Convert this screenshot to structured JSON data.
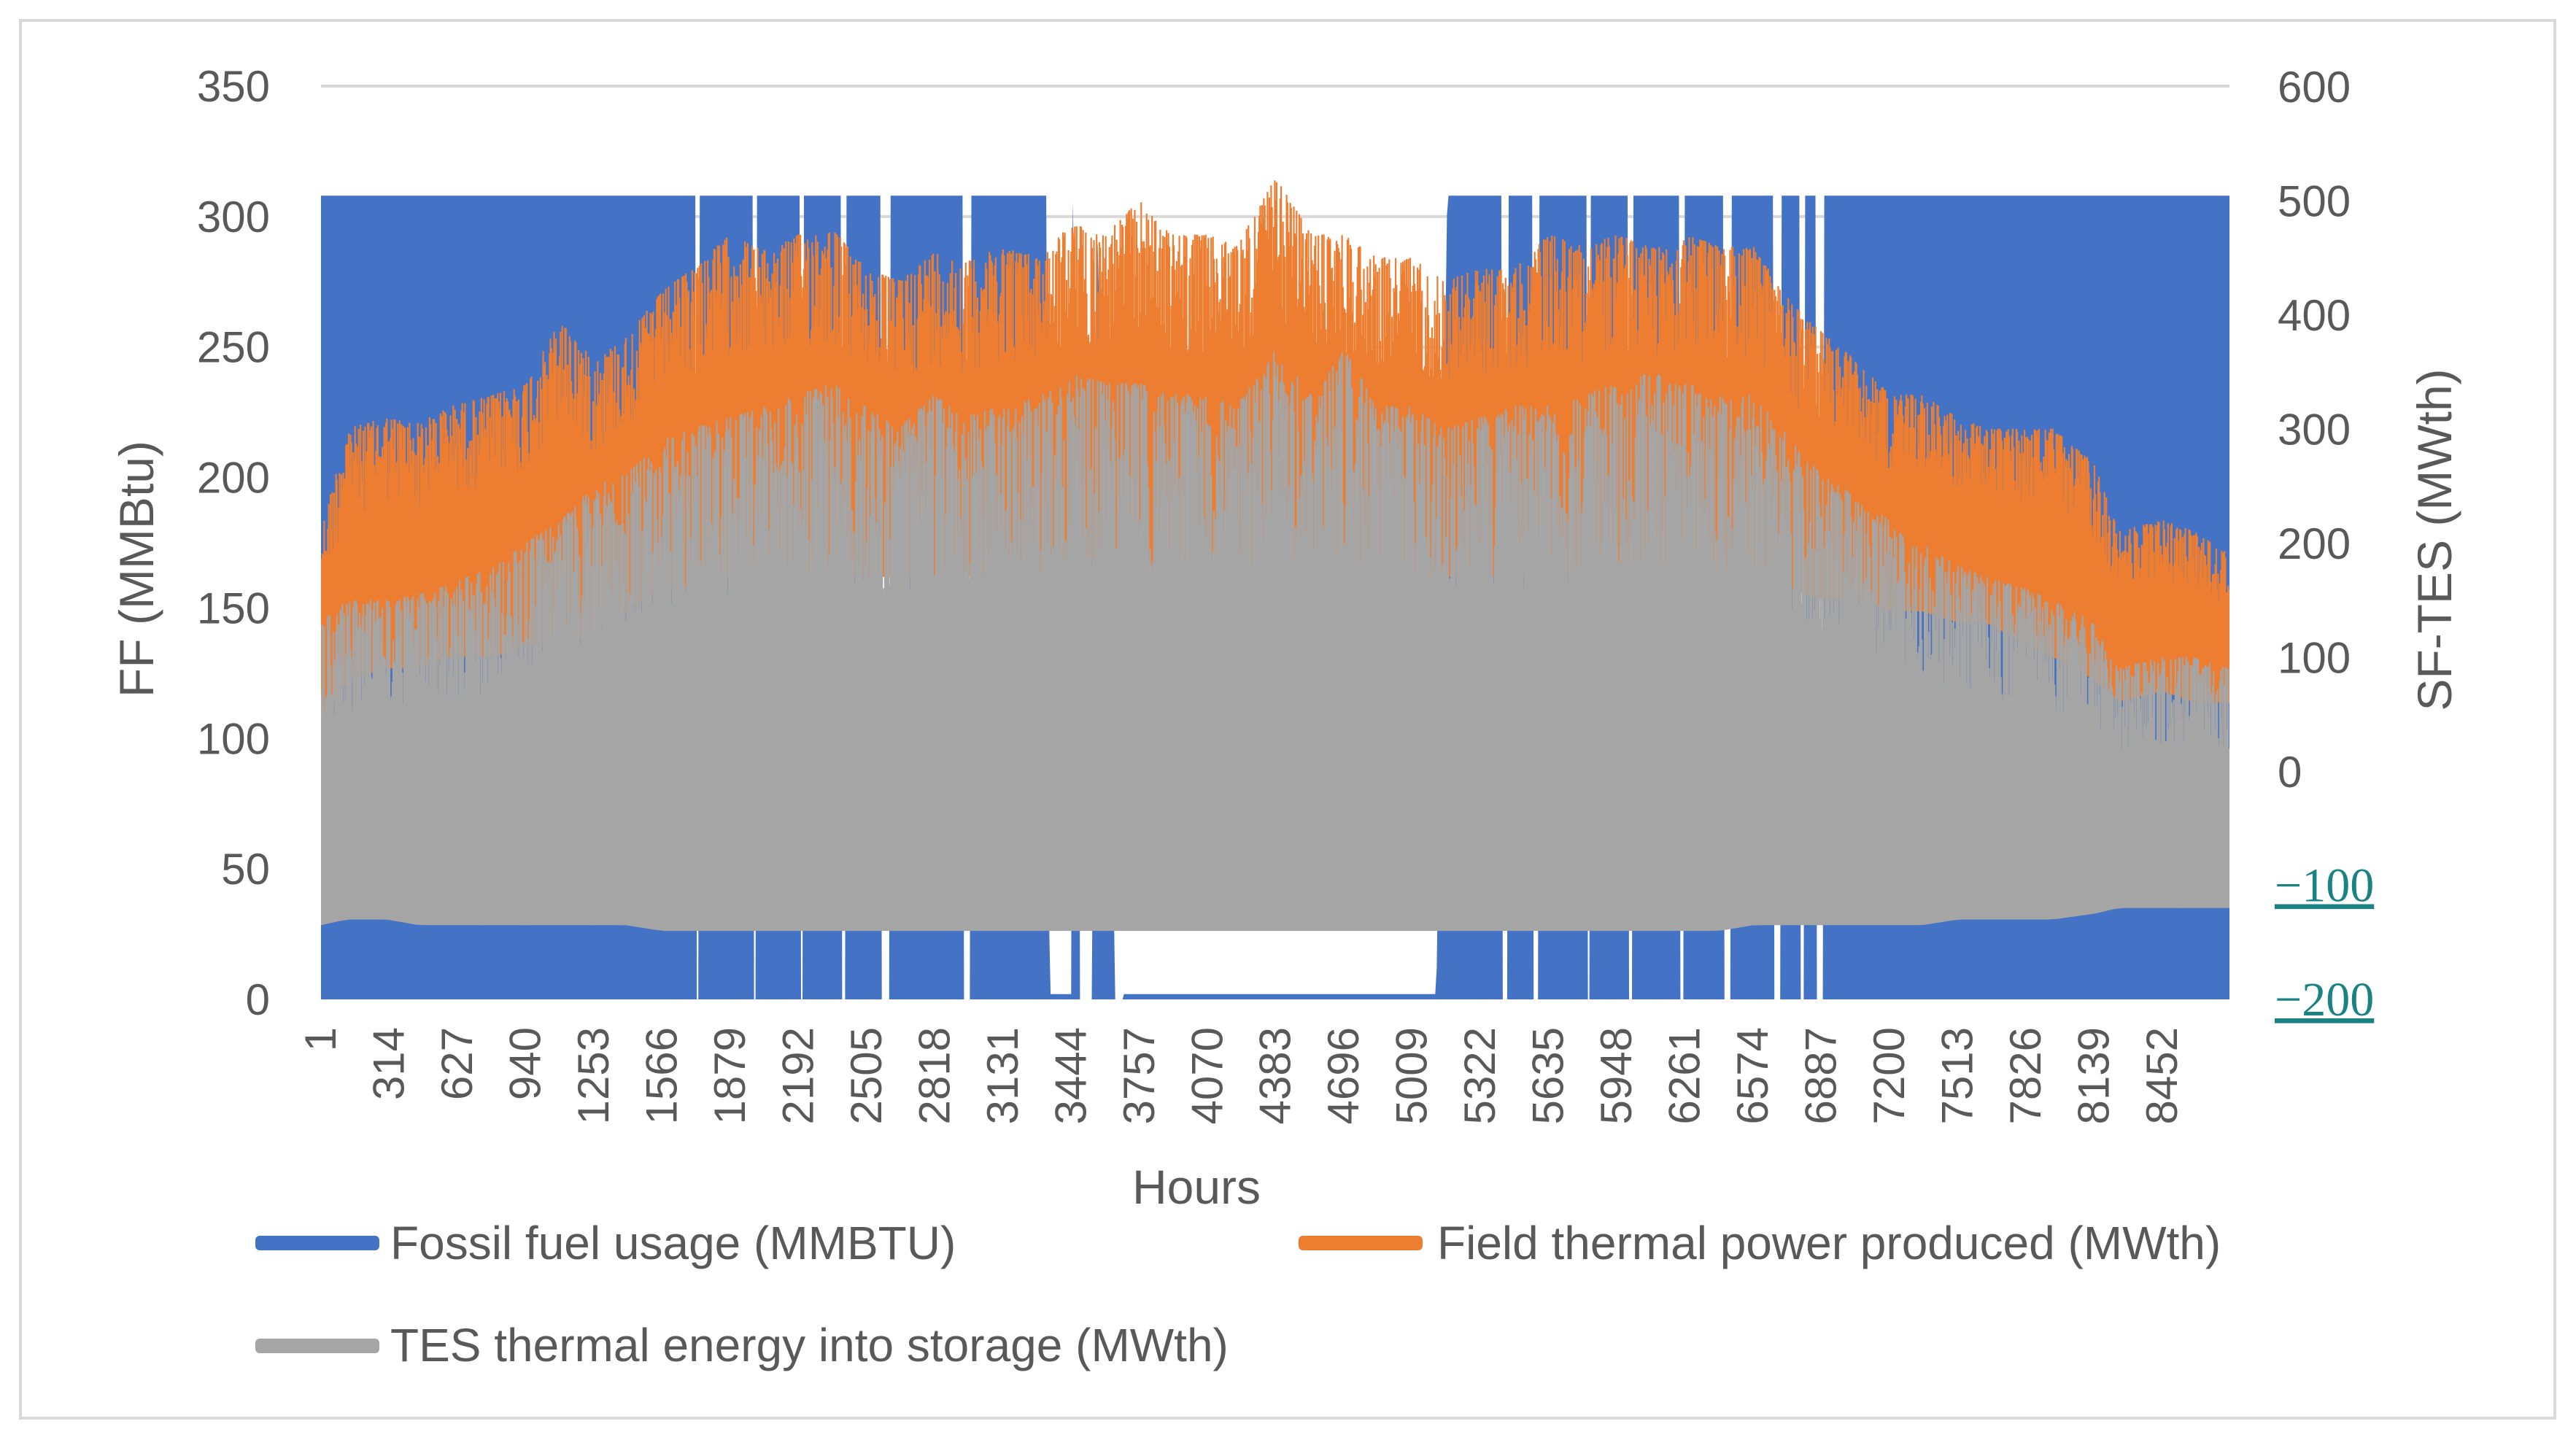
{
  "chart_data": {
    "type": "area",
    "title": "",
    "xlabel": "Hours",
    "ylabel_left": "FF (MMBtu)",
    "ylabel_right": "SF-TES (MWth)",
    "ylim_left": [
      0,
      350
    ],
    "ylim_right": [
      -200,
      600
    ],
    "yticks_left": [
      "0",
      "50",
      "100",
      "150",
      "200",
      "250",
      "300",
      "350"
    ],
    "yticks_left_values": [
      0,
      50,
      100,
      150,
      200,
      250,
      300,
      350
    ],
    "yticks_right": [
      "−200",
      "−100",
      "0",
      "100",
      "200",
      "300",
      "400",
      "500",
      "600"
    ],
    "yticks_right_values": [
      -200,
      -100,
      0,
      100,
      200,
      300,
      400,
      500,
      600
    ],
    "xlim": [
      1,
      8760
    ],
    "x_tick_labels": [
      "1",
      "314",
      "627",
      "940",
      "1253",
      "1566",
      "1879",
      "2192",
      "2505",
      "2818",
      "3131",
      "3444",
      "3757",
      "4070",
      "4383",
      "4696",
      "5009",
      "5322",
      "5635",
      "5948",
      "6261",
      "6574",
      "6887",
      "7200",
      "7513",
      "7826",
      "8139",
      "8452"
    ],
    "x_tick_values": [
      1,
      314,
      627,
      940,
      1253,
      1566,
      1879,
      2192,
      2505,
      2818,
      3131,
      3444,
      3757,
      4070,
      4383,
      4696,
      5009,
      5322,
      5635,
      5948,
      6261,
      6574,
      6887,
      7200,
      7513,
      7826,
      8139,
      8452
    ],
    "gridlines": true,
    "legend_position": "bottom",
    "series": [
      {
        "name": "Fossil fuel usage (MMBTU)",
        "axis": "left",
        "color": "#4472C4",
        "profile_x": [
          1,
          3331,
          3344,
          3444,
          3450,
          3540,
          3560,
          3650,
          5120,
          5170,
          8760
        ],
        "profile_max": [
          308,
          308,
          2,
          2,
          308,
          2,
          308,
          2,
          2,
          308,
          308
        ],
        "gaps_x": [
          [
            1720,
            1735
          ],
          [
            1985,
            2000
          ],
          [
            2200,
            2215
          ],
          [
            2390,
            2410
          ],
          [
            2570,
            2610
          ],
          [
            2950,
            2985
          ],
          [
            3480,
            3540
          ],
          [
            3640,
            3680
          ],
          [
            5420,
            5450
          ],
          [
            5560,
            5590
          ],
          [
            5810,
            5825
          ],
          [
            6000,
            6020
          ],
          [
            6240,
            6260
          ],
          [
            6440,
            6470
          ],
          [
            6670,
            6700
          ],
          [
            6790,
            6810
          ],
          [
            6860,
            6900
          ]
        ]
      },
      {
        "name": "Field thermal power produced (MWth)",
        "axis": "right",
        "color": "#ED7D31",
        "envelope_x": [
          1,
          120,
          300,
          450,
          600,
          800,
          940,
          1100,
          1253,
          1400,
          1566,
          1700,
          1879,
          2050,
          2192,
          2350,
          2505,
          2650,
          2818,
          2950,
          3131,
          3300,
          3444,
          3600,
          3757,
          3900,
          4070,
          4200,
          4383,
          4550,
          4696,
          4850,
          5009,
          5150,
          5322,
          5480,
          5635,
          5800,
          5948,
          6100,
          6261,
          6420,
          6574,
          6750,
          6887,
          7050,
          7200,
          7350,
          7513,
          7650,
          7826,
          7950,
          8139,
          8250,
          8452,
          8600,
          8760
        ],
        "envelope_max": [
          210,
          300,
          310,
          305,
          320,
          330,
          340,
          395,
          360,
          380,
          420,
          440,
          470,
          455,
          470,
          475,
          440,
          430,
          455,
          445,
          460,
          450,
          480,
          470,
          500,
          470,
          470,
          460,
          520,
          470,
          470,
          450,
          450,
          430,
          440,
          440,
          470,
          460,
          470,
          460,
          470,
          460,
          460,
          410,
          385,
          360,
          330,
          330,
          310,
          300,
          300,
          300,
          270,
          210,
          220,
          210,
          190
        ],
        "envelope_min": [
          40,
          80,
          90,
          90,
          100,
          100,
          110,
          110,
          120,
          140,
          160,
          160,
          170,
          170,
          170,
          170,
          170,
          170,
          170,
          170,
          170,
          170,
          170,
          170,
          170,
          170,
          170,
          170,
          170,
          170,
          170,
          170,
          170,
          170,
          170,
          170,
          170,
          170,
          170,
          170,
          170,
          170,
          160,
          160,
          150,
          150,
          140,
          140,
          130,
          130,
          110,
          100,
          80,
          60,
          70,
          60,
          60
        ]
      },
      {
        "name": "TES thermal energy into storage (MWth)",
        "axis": "right",
        "color": "#A5A5A5",
        "envelope_x": [
          1,
          120,
          300,
          450,
          600,
          800,
          940,
          1100,
          1253,
          1400,
          1566,
          1700,
          1879,
          2050,
          2192,
          2350,
          2505,
          2650,
          2818,
          2950,
          3131,
          3300,
          3444,
          3600,
          3757,
          3900,
          4070,
          4200,
          4383,
          4550,
          4696,
          4850,
          5009,
          5150,
          5322,
          5480,
          5635,
          5800,
          5948,
          6100,
          6261,
          6420,
          6574,
          6750,
          6887,
          7050,
          7200,
          7350,
          7513,
          7650,
          7826,
          7950,
          8139,
          8250,
          8452,
          8600,
          8760
        ],
        "envelope_max": [
          130,
          150,
          150,
          155,
          165,
          180,
          200,
          220,
          250,
          260,
          290,
          300,
          310,
          320,
          330,
          340,
          320,
          300,
          330,
          310,
          320,
          330,
          350,
          340,
          340,
          330,
          330,
          320,
          370,
          330,
          370,
          320,
          320,
          300,
          310,
          320,
          320,
          330,
          340,
          350,
          340,
          330,
          330,
          290,
          260,
          240,
          220,
          200,
          180,
          170,
          160,
          150,
          130,
          90,
          100,
          100,
          90
        ],
        "envelope_min": [
          -135,
          -130,
          -130,
          -135,
          -135,
          -135,
          -135,
          -135,
          -135,
          -135,
          -140,
          -140,
          -140,
          -140,
          -140,
          -140,
          -140,
          -140,
          -140,
          -140,
          -140,
          -140,
          -140,
          -140,
          -140,
          -140,
          -140,
          -140,
          -140,
          -140,
          -140,
          -140,
          -140,
          -140,
          -140,
          -140,
          -140,
          -140,
          -140,
          -140,
          -140,
          -140,
          -135,
          -135,
          -135,
          -135,
          -135,
          -135,
          -130,
          -130,
          -130,
          -130,
          -125,
          -120,
          -120,
          -120,
          -120
        ]
      }
    ]
  },
  "legend": {
    "items": [
      {
        "label": "Fossil fuel usage (MMBTU)",
        "color": "#4472C4"
      },
      {
        "label": "Field thermal power produced (MWth)",
        "color": "#ED7D31"
      },
      {
        "label": "TES thermal energy into storage (MWth)",
        "color": "#A5A5A5"
      }
    ]
  }
}
